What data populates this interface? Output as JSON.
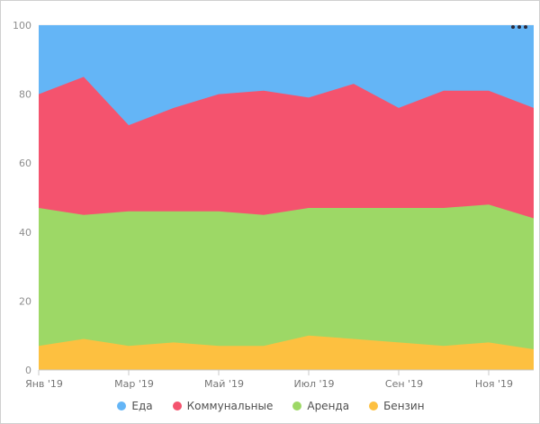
{
  "chart": {
    "menu_icon": "more-options",
    "background": "#ffffff"
  },
  "chart_data": {
    "type": "area",
    "stacked": true,
    "title": "",
    "xlabel": "",
    "ylabel": "",
    "ylim": [
      0,
      100
    ],
    "yticks": [
      0,
      20,
      40,
      60,
      80,
      100
    ],
    "x_tick_labels": [
      "Янв '19",
      "Мар '19",
      "Май '19",
      "Июл '19",
      "Сен '19",
      "Ноя '19"
    ],
    "x_tick_month_indices": [
      0,
      2,
      4,
      6,
      8,
      10
    ],
    "n_points": 12,
    "grid": true,
    "legend_position": "bottom",
    "axis_color": "#c8c8c8",
    "grid_color": "#e8e8e8",
    "tick_label_color": "#8e8e8e",
    "series": [
      {
        "name": "Бензин",
        "color": "#FDC040",
        "values": [
          7,
          9,
          7,
          8,
          7,
          7,
          10,
          9,
          8,
          7,
          8,
          6
        ]
      },
      {
        "name": "Аренда",
        "color": "#9DD866",
        "values": [
          40,
          36,
          39,
          38,
          39,
          38,
          37,
          38,
          39,
          40,
          40,
          38
        ]
      },
      {
        "name": "Коммунальные",
        "color": "#F4536E",
        "values": [
          33,
          40,
          25,
          30,
          34,
          36,
          32,
          36,
          29,
          34,
          33,
          32
        ]
      },
      {
        "name": "Еда",
        "color": "#64B5F6",
        "values": [
          20,
          15,
          29,
          24,
          20,
          19,
          21,
          17,
          24,
          19,
          19,
          24
        ]
      }
    ],
    "legend": [
      {
        "label": "Еда",
        "color": "#64B5F6"
      },
      {
        "label": "Коммунальные",
        "color": "#F4536E"
      },
      {
        "label": "Аренда",
        "color": "#9DD866"
      },
      {
        "label": "Бензин",
        "color": "#FDC040"
      }
    ]
  }
}
